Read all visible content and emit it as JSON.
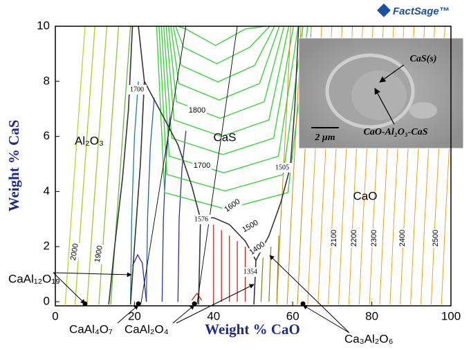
{
  "chart_data": {
    "type": "phase-diagram",
    "logo": "FactSage™",
    "x_label": "Weight % CaO",
    "y_label": "Weight % CaS",
    "xlim": [
      0,
      100
    ],
    "ylim": [
      -0.15,
      10
    ],
    "xticks": [
      0,
      20,
      40,
      60,
      80,
      100
    ],
    "yticks": [
      0,
      2,
      4,
      6,
      8,
      10
    ],
    "phase_labels": [
      "Al₂O₃",
      "CaS",
      "CaO",
      "CaAl₁₂O₁₉",
      "CaAl₄O₇",
      "CaAl₂O₄",
      "Ca₃Al₂O₆"
    ],
    "isotherm_labels": [
      1800,
      1700,
      1600,
      1500,
      1400,
      2000,
      1900,
      2100,
      2200,
      2300,
      2400,
      2500,
      1700,
      1576,
      1505,
      1354
    ],
    "inset": {
      "labels": [
        "CaS(s)",
        "CaO-Al₂O₃-CaS"
      ],
      "scale_bar": "2 μm"
    }
  }
}
